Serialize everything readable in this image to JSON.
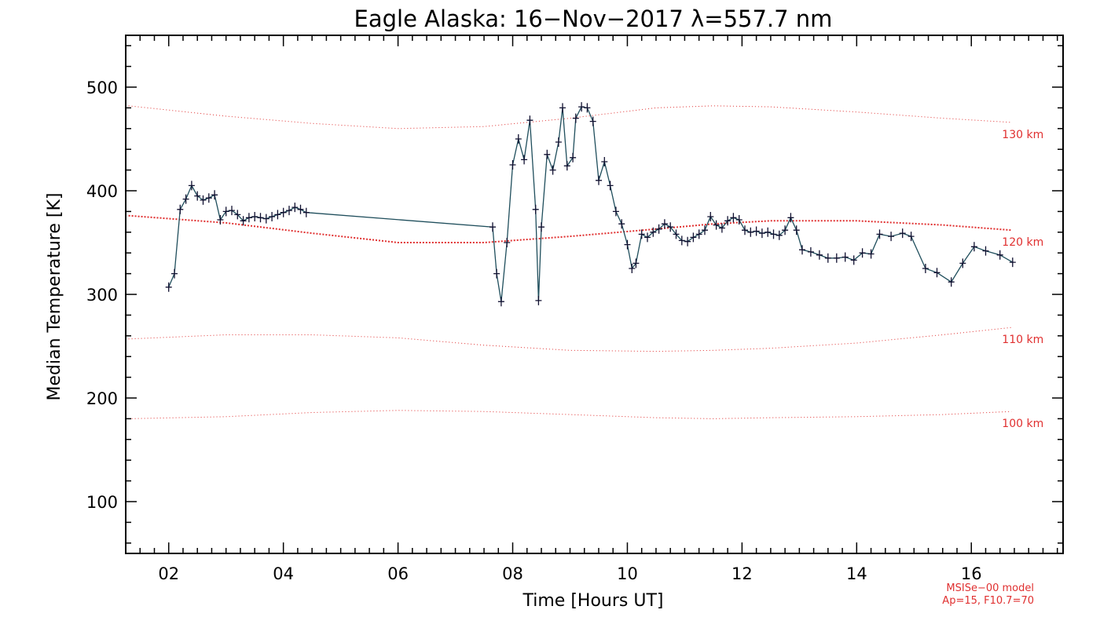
{
  "chart_data": {
    "type": "line",
    "title": "Eagle Alaska: 16−Nov−2017 λ=557.7 nm",
    "xlabel": "Time [Hours UT]",
    "ylabel": "Median Temperature [K]",
    "xlim": [
      1.25,
      17.6
    ],
    "ylim": [
      50,
      550
    ],
    "x_ticks": [
      2,
      4,
      6,
      8,
      10,
      12,
      14,
      16
    ],
    "x_tick_labels": [
      "02",
      "04",
      "06",
      "08",
      "10",
      "12",
      "14",
      "16"
    ],
    "y_ticks": [
      100,
      200,
      300,
      400,
      500
    ],
    "y_tick_labels": [
      "100",
      "200",
      "300",
      "400",
      "500"
    ],
    "grid": false,
    "colors": {
      "measured": "#1f4e5c",
      "marker": "#101030",
      "model": "#e03030"
    },
    "measured": {
      "x": [
        2.0,
        2.1,
        2.2,
        2.3,
        2.4,
        2.5,
        2.6,
        2.7,
        2.8,
        2.9,
        3.0,
        3.1,
        3.2,
        3.3,
        3.4,
        3.5,
        3.6,
        3.7,
        3.8,
        3.9,
        4.0,
        4.1,
        4.2,
        4.3,
        4.4,
        7.65,
        7.72,
        7.8,
        7.9,
        8.0,
        8.1,
        8.2,
        8.3,
        8.4,
        8.45,
        8.5,
        8.6,
        8.7,
        8.8,
        8.87,
        8.95,
        9.05,
        9.1,
        9.2,
        9.3,
        9.4,
        9.5,
        9.6,
        9.7,
        9.8,
        9.9,
        10.0,
        10.08,
        10.15,
        10.25,
        10.35,
        10.45,
        10.55,
        10.65,
        10.75,
        10.85,
        10.95,
        11.05,
        11.15,
        11.25,
        11.35,
        11.45,
        11.55,
        11.65,
        11.75,
        11.85,
        11.95,
        12.05,
        12.15,
        12.25,
        12.35,
        12.45,
        12.55,
        12.65,
        12.75,
        12.85,
        12.95,
        13.05,
        13.2,
        13.35,
        13.5,
        13.65,
        13.8,
        13.95,
        14.1,
        14.25,
        14.4,
        14.6,
        14.8,
        14.95,
        15.2,
        15.4,
        15.65,
        15.85,
        16.05,
        16.25,
        16.5,
        16.72
      ],
      "y": [
        307,
        320,
        382,
        392,
        405,
        395,
        391,
        393,
        396,
        372,
        380,
        381,
        377,
        371,
        374,
        375,
        374,
        373,
        375,
        377,
        379,
        381,
        384,
        382,
        379,
        365,
        320,
        293,
        350,
        425,
        450,
        430,
        468,
        382,
        294,
        365,
        435,
        420,
        447,
        480,
        424,
        432,
        470,
        481,
        480,
        467,
        410,
        428,
        405,
        380,
        368,
        348,
        325,
        330,
        358,
        355,
        360,
        363,
        368,
        365,
        358,
        352,
        351,
        355,
        358,
        362,
        375,
        367,
        364,
        371,
        374,
        372,
        362,
        360,
        361,
        359,
        360,
        358,
        357,
        362,
        374,
        362,
        343,
        341,
        338,
        335,
        335,
        336,
        333,
        340,
        339,
        358,
        356,
        359,
        356,
        325,
        321,
        312,
        330,
        346,
        342,
        338,
        331
      ]
    },
    "models": [
      {
        "label": "130 km",
        "x": [
          1.3,
          3.0,
          4.5,
          6.0,
          7.5,
          9.0,
          10.5,
          11.5,
          12.5,
          14.0,
          15.5,
          16.7
        ],
        "y": [
          482,
          472,
          465,
          460,
          462,
          470,
          480,
          482,
          481,
          476,
          470,
          466
        ]
      },
      {
        "label": "120 km",
        "x": [
          1.3,
          3.0,
          4.5,
          6.0,
          7.5,
          9.0,
          10.5,
          11.5,
          12.5,
          14.0,
          15.5,
          16.7
        ],
        "y": [
          376,
          369,
          359,
          350,
          350,
          356,
          363,
          368,
          371,
          371,
          367,
          362
        ]
      },
      {
        "label": "110 km",
        "x": [
          1.3,
          3.0,
          4.5,
          6.0,
          7.5,
          9.0,
          10.5,
          11.5,
          12.5,
          14.0,
          15.5,
          16.7
        ],
        "y": [
          257,
          261,
          261,
          258,
          251,
          246,
          245,
          246,
          248,
          253,
          261,
          268
        ]
      },
      {
        "label": "100 km",
        "x": [
          1.3,
          3.0,
          4.5,
          6.0,
          7.5,
          9.0,
          10.5,
          11.5,
          12.5,
          14.0,
          15.5,
          16.7
        ],
        "y": [
          180,
          182,
          186,
          188,
          187,
          184,
          181,
          180,
          181,
          182,
          184,
          187
        ]
      }
    ],
    "note_line1": "MSISe−00 model",
    "note_line2": "Ap=15, F10.7=70"
  }
}
